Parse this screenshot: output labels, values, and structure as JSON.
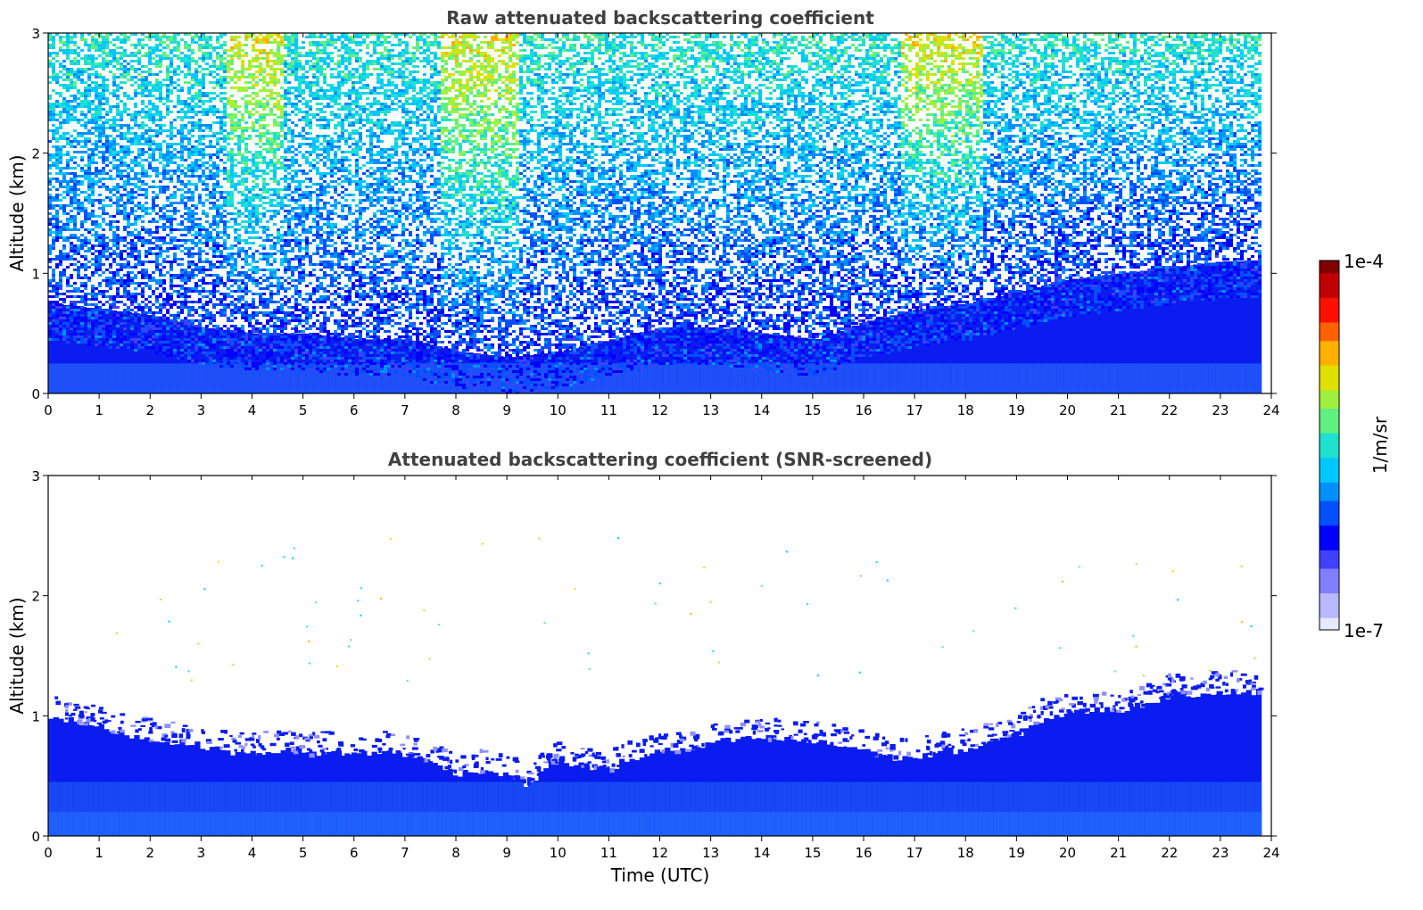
{
  "chart_data": [
    {
      "type": "heatmap",
      "title": "Raw attenuated backscattering coefficient",
      "xlabel": "",
      "ylabel": "Altitude (km)",
      "xlim": [
        0,
        24
      ],
      "ylim": [
        0,
        3
      ],
      "x_ticks": [
        "0",
        "1",
        "2",
        "3",
        "4",
        "5",
        "6",
        "7",
        "8",
        "9",
        "10",
        "11",
        "12",
        "13",
        "14",
        "15",
        "16",
        "17",
        "18",
        "19",
        "20",
        "21",
        "22",
        "23",
        "24"
      ],
      "y_ticks": [
        "0",
        "1",
        "2",
        "3"
      ],
      "data_end_time": 23.8,
      "noise_onset_altitude_km": [
        {
          "t": 0,
          "alt": 0.75
        },
        {
          "t": 1,
          "alt": 0.7
        },
        {
          "t": 2,
          "alt": 0.65
        },
        {
          "t": 3,
          "alt": 0.55
        },
        {
          "t": 4,
          "alt": 0.5
        },
        {
          "t": 5,
          "alt": 0.5
        },
        {
          "t": 6,
          "alt": 0.45
        },
        {
          "t": 7,
          "alt": 0.45
        },
        {
          "t": 8,
          "alt": 0.35
        },
        {
          "t": 9,
          "alt": 0.3
        },
        {
          "t": 10,
          "alt": 0.35
        },
        {
          "t": 11,
          "alt": 0.45
        },
        {
          "t": 12,
          "alt": 0.55
        },
        {
          "t": 13,
          "alt": 0.55
        },
        {
          "t": 14,
          "alt": 0.5
        },
        {
          "t": 15,
          "alt": 0.45
        },
        {
          "t": 16,
          "alt": 0.6
        },
        {
          "t": 17,
          "alt": 0.7
        },
        {
          "t": 18,
          "alt": 0.75
        },
        {
          "t": 19,
          "alt": 0.85
        },
        {
          "t": 20,
          "alt": 0.95
        },
        {
          "t": 21,
          "alt": 1.0
        },
        {
          "t": 22,
          "alt": 1.05
        },
        {
          "t": 23,
          "alt": 1.1
        },
        {
          "t": 23.8,
          "alt": 1.1
        }
      ]
    },
    {
      "type": "heatmap",
      "title": "Attenuated backscattering coefficient (SNR-screened)",
      "xlabel": "Time (UTC)",
      "ylabel": "Altitude (km)",
      "xlim": [
        0,
        24
      ],
      "ylim": [
        0,
        3
      ],
      "x_ticks": [
        "0",
        "1",
        "2",
        "3",
        "4",
        "5",
        "6",
        "7",
        "8",
        "9",
        "10",
        "11",
        "12",
        "13",
        "14",
        "15",
        "16",
        "17",
        "18",
        "19",
        "20",
        "21",
        "22",
        "23",
        "24"
      ],
      "y_ticks": [
        "0",
        "1",
        "2",
        "3"
      ],
      "data_end_time": 23.8,
      "boundary_layer_top_km": [
        {
          "t": 0,
          "alt": 1.0
        },
        {
          "t": 0.5,
          "alt": 0.95
        },
        {
          "t": 1,
          "alt": 0.9
        },
        {
          "t": 1.5,
          "alt": 0.85
        },
        {
          "t": 2,
          "alt": 0.8
        },
        {
          "t": 2.5,
          "alt": 0.78
        },
        {
          "t": 3,
          "alt": 0.75
        },
        {
          "t": 3.5,
          "alt": 0.7
        },
        {
          "t": 4,
          "alt": 0.68
        },
        {
          "t": 4.5,
          "alt": 0.72
        },
        {
          "t": 5,
          "alt": 0.68
        },
        {
          "t": 5.5,
          "alt": 0.7
        },
        {
          "t": 6,
          "alt": 0.68
        },
        {
          "t": 6.5,
          "alt": 0.7
        },
        {
          "t": 7,
          "alt": 0.68
        },
        {
          "t": 7.5,
          "alt": 0.6
        },
        {
          "t": 8,
          "alt": 0.52
        },
        {
          "t": 8.5,
          "alt": 0.55
        },
        {
          "t": 9,
          "alt": 0.5
        },
        {
          "t": 9.4,
          "alt": 0.42
        },
        {
          "t": 9.7,
          "alt": 0.58
        },
        {
          "t": 10,
          "alt": 0.62
        },
        {
          "t": 10.5,
          "alt": 0.58
        },
        {
          "t": 11,
          "alt": 0.55
        },
        {
          "t": 11.5,
          "alt": 0.65
        },
        {
          "t": 12,
          "alt": 0.72
        },
        {
          "t": 12.5,
          "alt": 0.7
        },
        {
          "t": 13,
          "alt": 0.78
        },
        {
          "t": 13.5,
          "alt": 0.8
        },
        {
          "t": 14,
          "alt": 0.82
        },
        {
          "t": 14.5,
          "alt": 0.8
        },
        {
          "t": 15,
          "alt": 0.78
        },
        {
          "t": 15.5,
          "alt": 0.75
        },
        {
          "t": 16,
          "alt": 0.72
        },
        {
          "t": 16.5,
          "alt": 0.65
        },
        {
          "t": 17,
          "alt": 0.65
        },
        {
          "t": 17.5,
          "alt": 0.7
        },
        {
          "t": 18,
          "alt": 0.72
        },
        {
          "t": 18.5,
          "alt": 0.78
        },
        {
          "t": 19,
          "alt": 0.85
        },
        {
          "t": 19.5,
          "alt": 0.98
        },
        {
          "t": 20,
          "alt": 1.02
        },
        {
          "t": 20.5,
          "alt": 1.05
        },
        {
          "t": 21,
          "alt": 1.05
        },
        {
          "t": 21.5,
          "alt": 1.1
        },
        {
          "t": 22,
          "alt": 1.18
        },
        {
          "t": 22.5,
          "alt": 1.18
        },
        {
          "t": 23,
          "alt": 1.2
        },
        {
          "t": 23.8,
          "alt": 1.2
        }
      ]
    }
  ],
  "colorbar": {
    "label": "1/m/sr",
    "max_label": "1e-4",
    "min_label": "1e-7",
    "scale": "log",
    "colors": [
      "#e8e8ff",
      "#b8b8ff",
      "#8080ff",
      "#4040ff",
      "#0000ff",
      "#0050ff",
      "#0090ff",
      "#00c8ff",
      "#20e0d0",
      "#60f080",
      "#a0f040",
      "#e0e000",
      "#ffb000",
      "#ff6000",
      "#ff1000",
      "#c00000",
      "#800000"
    ]
  }
}
